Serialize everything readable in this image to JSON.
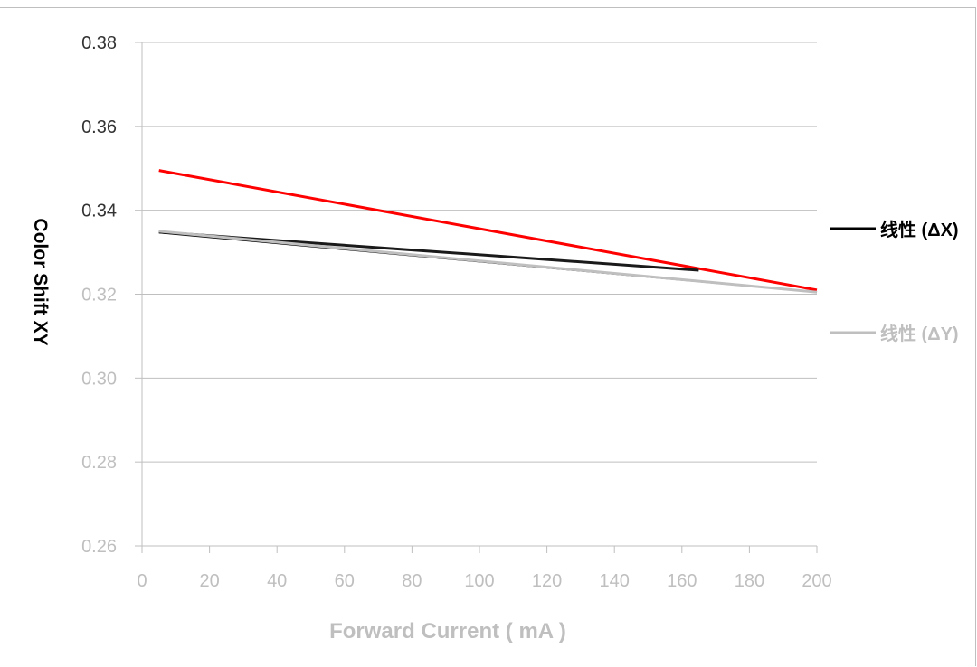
{
  "chart_data": {
    "type": "line",
    "title": "",
    "xlabel": "Forward  Current ( mA )",
    "ylabel": "Color Shift  XY",
    "xlim": [
      0,
      200
    ],
    "ylim": [
      0.26,
      0.38
    ],
    "x_ticks": [
      "0",
      "20",
      "40",
      "60",
      "80",
      "100",
      "120",
      "140",
      "160",
      "180",
      "200"
    ],
    "y_ticks": [
      "0.26",
      "0.28",
      "0.30",
      "0.32",
      "0.34",
      "0.36",
      "0.38"
    ],
    "grid": true,
    "legend_position": "right",
    "series": [
      {
        "name": "ΔX",
        "color": "#ff0000",
        "x": [
          5,
          200
        ],
        "y": [
          0.3495,
          0.321
        ]
      },
      {
        "name": "ΔY",
        "color": "#1a1a1a",
        "x": [
          5,
          165
        ],
        "y": [
          0.3348,
          0.3257
        ]
      },
      {
        "name": "线性 (ΔX)",
        "color": "#000000",
        "x": [
          5,
          200
        ],
        "y": [
          0.3347,
          0.3205
        ]
      },
      {
        "name": "线性 (ΔY)",
        "color": "#bfbfbf",
        "x": [
          5,
          200
        ],
        "y": [
          0.335,
          0.3205
        ]
      }
    ],
    "legend": [
      {
        "label": "线性 (ΔX)",
        "color": "#000000"
      },
      {
        "label": "线性 (ΔY)",
        "color": "#bfbfbf"
      }
    ]
  }
}
